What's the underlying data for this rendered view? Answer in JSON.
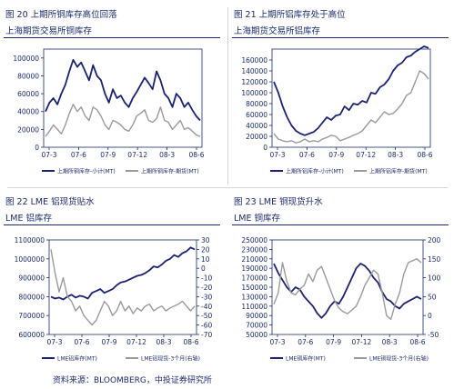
{
  "panels": [
    {
      "title": "图 20 上期所铜库存高位回落",
      "subtitle": "上海期货交易所铜库存"
    },
    {
      "title": "图 21 上期所铝库存处于高位",
      "subtitle": "上海期货交易所铝库存"
    },
    {
      "title": "图 22 LME 铝现货贴水",
      "subtitle": "LME 铝库存"
    },
    {
      "title": "图 23 LME 铜现货升水",
      "subtitle": "LME 铜库存"
    }
  ],
  "source": "资料来源：BLOOMBERG，中投证券研究所",
  "colors": {
    "primary": "#1b2370",
    "secondary": "#9a9a9a",
    "text": "#1a2a6c"
  },
  "chart_data": [
    {
      "type": "line",
      "x_labels": [
        "07-3",
        "07-6",
        "07-9",
        "07-12",
        "08-3",
        "08-6"
      ],
      "y_ticks": [
        0,
        20000,
        40000,
        60000,
        80000,
        100000
      ],
      "ylim": [
        0,
        110000
      ],
      "series": [
        {
          "name": "上期所铜库存-小计(MT)",
          "color": "#1b2370",
          "values": [
            40000,
            50000,
            55000,
            48000,
            60000,
            70000,
            85000,
            98000,
            90000,
            95000,
            85000,
            75000,
            92000,
            80000,
            75000,
            60000,
            50000,
            65000,
            55000,
            58000,
            50000,
            45000,
            55000,
            62000,
            70000,
            78000,
            72000,
            65000,
            85000,
            75000,
            60000,
            55000,
            45000,
            60000,
            55000,
            45000,
            50000,
            42000,
            35000,
            30000
          ]
        },
        {
          "name": "上期所铜库存-期货(MT)",
          "color": "#9a9a9a",
          "values": [
            12000,
            18000,
            25000,
            20000,
            15000,
            25000,
            38000,
            48000,
            40000,
            45000,
            35000,
            30000,
            45000,
            42000,
            35000,
            25000,
            20000,
            30000,
            28000,
            25000,
            20000,
            18000,
            25000,
            35000,
            38000,
            42000,
            30000,
            28000,
            32000,
            45000,
            30000,
            28000,
            20000,
            25000,
            30000,
            20000,
            22000,
            18000,
            14000,
            12000
          ]
        }
      ]
    },
    {
      "type": "line",
      "x_labels": [
        "07-3",
        "07-6",
        "07-9",
        "07-12",
        "08-3",
        "08-6"
      ],
      "y_ticks": [
        0,
        20000,
        40000,
        60000,
        80000,
        100000,
        120000,
        140000,
        160000
      ],
      "ylim": [
        0,
        180000
      ],
      "series": [
        {
          "name": "上期所铝库存-小计(MT)",
          "color": "#1b2370",
          "values": [
            120000,
            100000,
            75000,
            55000,
            40000,
            30000,
            25000,
            22000,
            25000,
            28000,
            35000,
            45000,
            55000,
            50000,
            58000,
            60000,
            75000,
            68000,
            80000,
            78000,
            85000,
            82000,
            100000,
            98000,
            110000,
            115000,
            125000,
            140000,
            150000,
            155000,
            165000,
            168000,
            175000,
            180000,
            185000,
            182000
          ]
        },
        {
          "name": "上期所铝库存-期货(MT)",
          "color": "#9a9a9a",
          "values": [
            25000,
            15000,
            12000,
            10000,
            12000,
            8000,
            10000,
            15000,
            10000,
            12000,
            10000,
            15000,
            18000,
            22000,
            20000,
            12000,
            15000,
            18000,
            22000,
            25000,
            30000,
            40000,
            50000,
            45000,
            55000,
            65000,
            60000,
            62000,
            70000,
            80000,
            95000,
            100000,
            120000,
            140000,
            135000,
            125000
          ]
        }
      ]
    },
    {
      "type": "line",
      "x_labels": [
        "07-3",
        "07-6",
        "07-9",
        "07-12",
        "08-3",
        "08-6"
      ],
      "y_ticks": [
        600000,
        700000,
        800000,
        900000,
        1000000,
        1100000
      ],
      "ylim": [
        600000,
        1100000
      ],
      "y2_ticks": [
        -70,
        -60,
        -50,
        -40,
        -30,
        -20,
        -10,
        0,
        10,
        20,
        30
      ],
      "y2lim": [
        -70,
        30
      ],
      "series": [
        {
          "name": "LME铝库存(MT)",
          "color": "#1b2370",
          "axis": "left",
          "values": [
            800000,
            790000,
            795000,
            785000,
            800000,
            810000,
            795000,
            805000,
            800000,
            790000,
            820000,
            830000,
            840000,
            820000,
            830000,
            840000,
            860000,
            875000,
            880000,
            890000,
            900000,
            910000,
            915000,
            925000,
            940000,
            960000,
            955000,
            970000,
            990000,
            1000000,
            1020000,
            1010000,
            1030000,
            1040000,
            1060000,
            1050000
          ]
        },
        {
          "name": "LME铝现货-3个月(右轴)",
          "color": "#9a9a9a",
          "axis": "right",
          "values": [
            20,
            -5,
            -25,
            -10,
            -30,
            -35,
            -45,
            -40,
            -50,
            -55,
            -60,
            -55,
            -45,
            -35,
            -40,
            -50,
            -45,
            -35,
            -45,
            -40,
            -48,
            -42,
            -45,
            -40,
            -38,
            -45,
            -42,
            -40,
            -45,
            -42,
            -40,
            -38,
            -35,
            -40,
            -45,
            -40
          ]
        }
      ]
    },
    {
      "type": "line",
      "x_labels": [
        "07-3",
        "07-6",
        "07-9",
        "07-12",
        "08-3",
        "08-6"
      ],
      "y_ticks": [
        50000,
        70000,
        90000,
        110000,
        130000,
        150000,
        170000,
        190000,
        210000,
        230000,
        250000
      ],
      "ylim": [
        50000,
        250000
      ],
      "y2_ticks": [
        -50,
        0,
        50,
        100,
        150,
        200
      ],
      "y2lim": [
        -50,
        200
      ],
      "series": [
        {
          "name": "LME铜库存(MT)",
          "color": "#1b2370",
          "axis": "left",
          "values": [
            200000,
            180000,
            165000,
            150000,
            140000,
            150000,
            145000,
            130000,
            120000,
            110000,
            95000,
            85000,
            95000,
            110000,
            120000,
            115000,
            130000,
            150000,
            170000,
            190000,
            200000,
            195000,
            185000,
            170000,
            160000,
            140000,
            125000,
            120000,
            110000,
            105000,
            115000,
            120000,
            125000,
            130000,
            125000
          ]
        },
        {
          "name": "LME铜现货-3个月(右轴)",
          "color": "#9a9a9a",
          "axis": "right",
          "values": [
            30,
            60,
            140,
            90,
            60,
            55,
            70,
            80,
            110,
            90,
            120,
            130,
            100,
            70,
            40,
            20,
            10,
            5,
            15,
            25,
            50,
            80,
            100,
            120,
            110,
            60,
            0,
            -10,
            30,
            60,
            110,
            140,
            145,
            150,
            140
          ]
        }
      ]
    }
  ]
}
